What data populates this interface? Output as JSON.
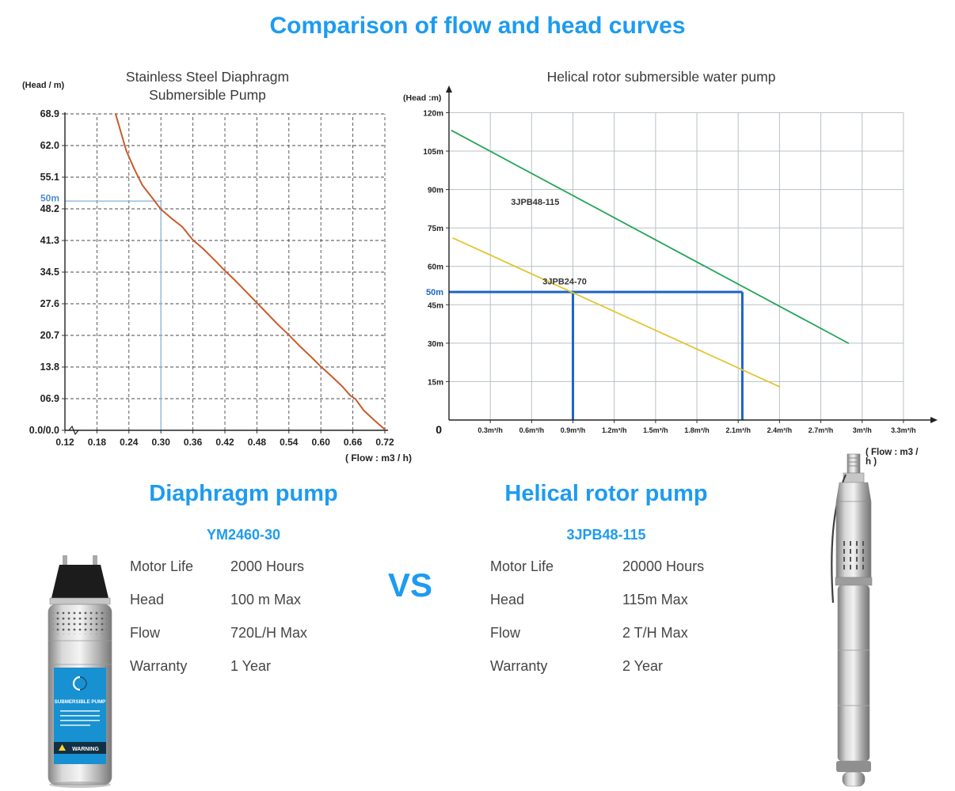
{
  "title": "Comparison of flow and head curves",
  "accent_color": "#1d9bf0",
  "chart_data": [
    {
      "type": "line",
      "title": "Stainless Steel Diaphragm Submersible Pump",
      "title_lines": [
        "Stainless Steel Diaphragm",
        "Submersible Pump"
      ],
      "ylabel": "(Head / m)",
      "xlabel": "( Flow : m3 / h)",
      "xlim": [
        0.12,
        0.72
      ],
      "ylim": [
        0,
        69
      ],
      "grid": "dashed",
      "legend_position": "none",
      "x_tick_values": [
        0.12,
        0.18,
        0.24,
        0.3,
        0.36,
        0.42,
        0.48,
        0.54,
        0.6,
        0.66,
        0.72
      ],
      "x_tick_labels": [
        "0.12",
        "0.18",
        "0.24",
        "0.30",
        "0.36",
        "0.42",
        "0.48",
        "0.54",
        "0.60",
        "0.66",
        "0.72"
      ],
      "y_tick_values": [
        69,
        62.1,
        55.2,
        48.3,
        41.4,
        34.5,
        27.6,
        20.7,
        13.8,
        6.9,
        0
      ],
      "y_tick_labels": [
        "68.9",
        "62.0",
        "55.1",
        "48.2",
        "41.3",
        "34.5",
        "27.6",
        "20.7",
        "13.8",
        "06.9",
        "0.0/0.0"
      ],
      "axis_break": true,
      "series": [
        {
          "name": "YM2460-30 pump curve",
          "color": "#c75b2e",
          "width": 2,
          "points": [
            [
              0.215,
              69
            ],
            [
              0.225,
              65
            ],
            [
              0.235,
              61
            ],
            [
              0.25,
              57
            ],
            [
              0.265,
              53.5
            ],
            [
              0.285,
              50.5
            ],
            [
              0.3,
              48.2
            ],
            [
              0.32,
              46.2
            ],
            [
              0.34,
              44.4
            ],
            [
              0.36,
              41.5
            ],
            [
              0.38,
              39.5
            ],
            [
              0.4,
              37.2
            ],
            [
              0.42,
              34.8
            ],
            [
              0.44,
              32.6
            ],
            [
              0.46,
              30.2
            ],
            [
              0.48,
              27.8
            ],
            [
              0.5,
              25.4
            ],
            [
              0.52,
              23.0
            ],
            [
              0.54,
              20.8
            ],
            [
              0.56,
              18.4
            ],
            [
              0.58,
              16.2
            ],
            [
              0.6,
              13.9
            ],
            [
              0.62,
              11.8
            ],
            [
              0.64,
              9.6
            ],
            [
              0.655,
              7.6
            ],
            [
              0.665,
              6.8
            ],
            [
              0.68,
              4.4
            ],
            [
              0.7,
              2.2
            ],
            [
              0.72,
              0.2
            ]
          ]
        }
      ],
      "references": [
        {
          "type": "h",
          "y": 50,
          "x1": 0.12,
          "x2": 0.3,
          "color": "#8fb8dc",
          "width": 1.4
        },
        {
          "type": "v",
          "x": 0.3,
          "y1": 0,
          "y2": 50,
          "color": "#8fb8dc",
          "width": 1.4
        }
      ],
      "annotations": [
        {
          "text": "50m",
          "y": 50.6,
          "color": "#4c8fd0",
          "size": 12
        }
      ]
    },
    {
      "type": "line",
      "title": "Helical rotor submersible water pump",
      "ylabel": "(Head :m)",
      "xlabel": "( Flow : m3 / h )",
      "xlim": [
        0,
        3.45
      ],
      "ylim": [
        0,
        126
      ],
      "grid": "solid",
      "legend_position": "none",
      "axis_arrows": true,
      "origin_label": "0",
      "x_tick_values": [
        0.3,
        0.6,
        0.9,
        1.2,
        1.5,
        1.8,
        2.1,
        2.4,
        2.7,
        3.0,
        3.3
      ],
      "x_tick_labels": [
        "0.3m³/h",
        "0.6m³/h",
        "0.9m³/h",
        "1.2m³/h",
        "1.5m³/h",
        "1.8m³/h",
        "2.1m³/h",
        "2.4m³/h",
        "2.7m³/h",
        "3m³/h",
        "3.3m³/h"
      ],
      "y_tick_values": [
        120,
        105,
        90,
        75,
        60,
        45,
        30,
        15
      ],
      "y_tick_labels": [
        "120m",
        "105m",
        "90m",
        "75m",
        "60m",
        "45m",
        "30m",
        "15m"
      ],
      "series": [
        {
          "name": "3JPB48-115",
          "color": "#23a457",
          "width": 1.8,
          "points": [
            [
              0.02,
              113
            ],
            [
              2.9,
              30
            ]
          ],
          "label_at": [
            0.45,
            84
          ]
        },
        {
          "name": "3JPB24-70",
          "color": "#e2c52e",
          "width": 1.8,
          "points": [
            [
              0.03,
              71
            ],
            [
              2.4,
              13
            ]
          ],
          "label_at": [
            0.68,
            53
          ]
        }
      ],
      "references": [
        {
          "type": "h",
          "y": 50,
          "x1": 0,
          "x2": 2.13,
          "color": "#1d64c8",
          "width": 3
        },
        {
          "type": "v",
          "x": 0.9,
          "y1": 0,
          "y2": 50,
          "color": "#1d64c8",
          "width": 3
        },
        {
          "type": "v",
          "x": 2.13,
          "y1": 0,
          "y2": 50,
          "color": "#1d64c8",
          "width": 3
        }
      ],
      "annotations": [
        {
          "text": "50m",
          "y": 50,
          "color": "#1d64c8",
          "size": 11
        }
      ]
    }
  ],
  "comparison": {
    "vs": "VS",
    "left": {
      "heading": "Diaphragm pump",
      "model": "YM2460-30",
      "specs": [
        [
          "Motor Life",
          "2000 Hours"
        ],
        [
          "Head",
          "100 m Max"
        ],
        [
          "Flow",
          "720L/H Max"
        ],
        [
          "Warranty",
          "1 Year"
        ]
      ]
    },
    "right": {
      "heading": "Helical rotor pump",
      "model": "3JPB48-115",
      "specs": [
        [
          "Motor Life",
          "20000 Hours"
        ],
        [
          "Head",
          "115m Max"
        ],
        [
          "Flow",
          "2 T/H Max"
        ],
        [
          "Warranty",
          "2 Year"
        ]
      ]
    }
  },
  "pump_labels": {
    "sticker_title": "SUBMERSIBLE PUMP",
    "sticker_warning": "WARNING"
  }
}
